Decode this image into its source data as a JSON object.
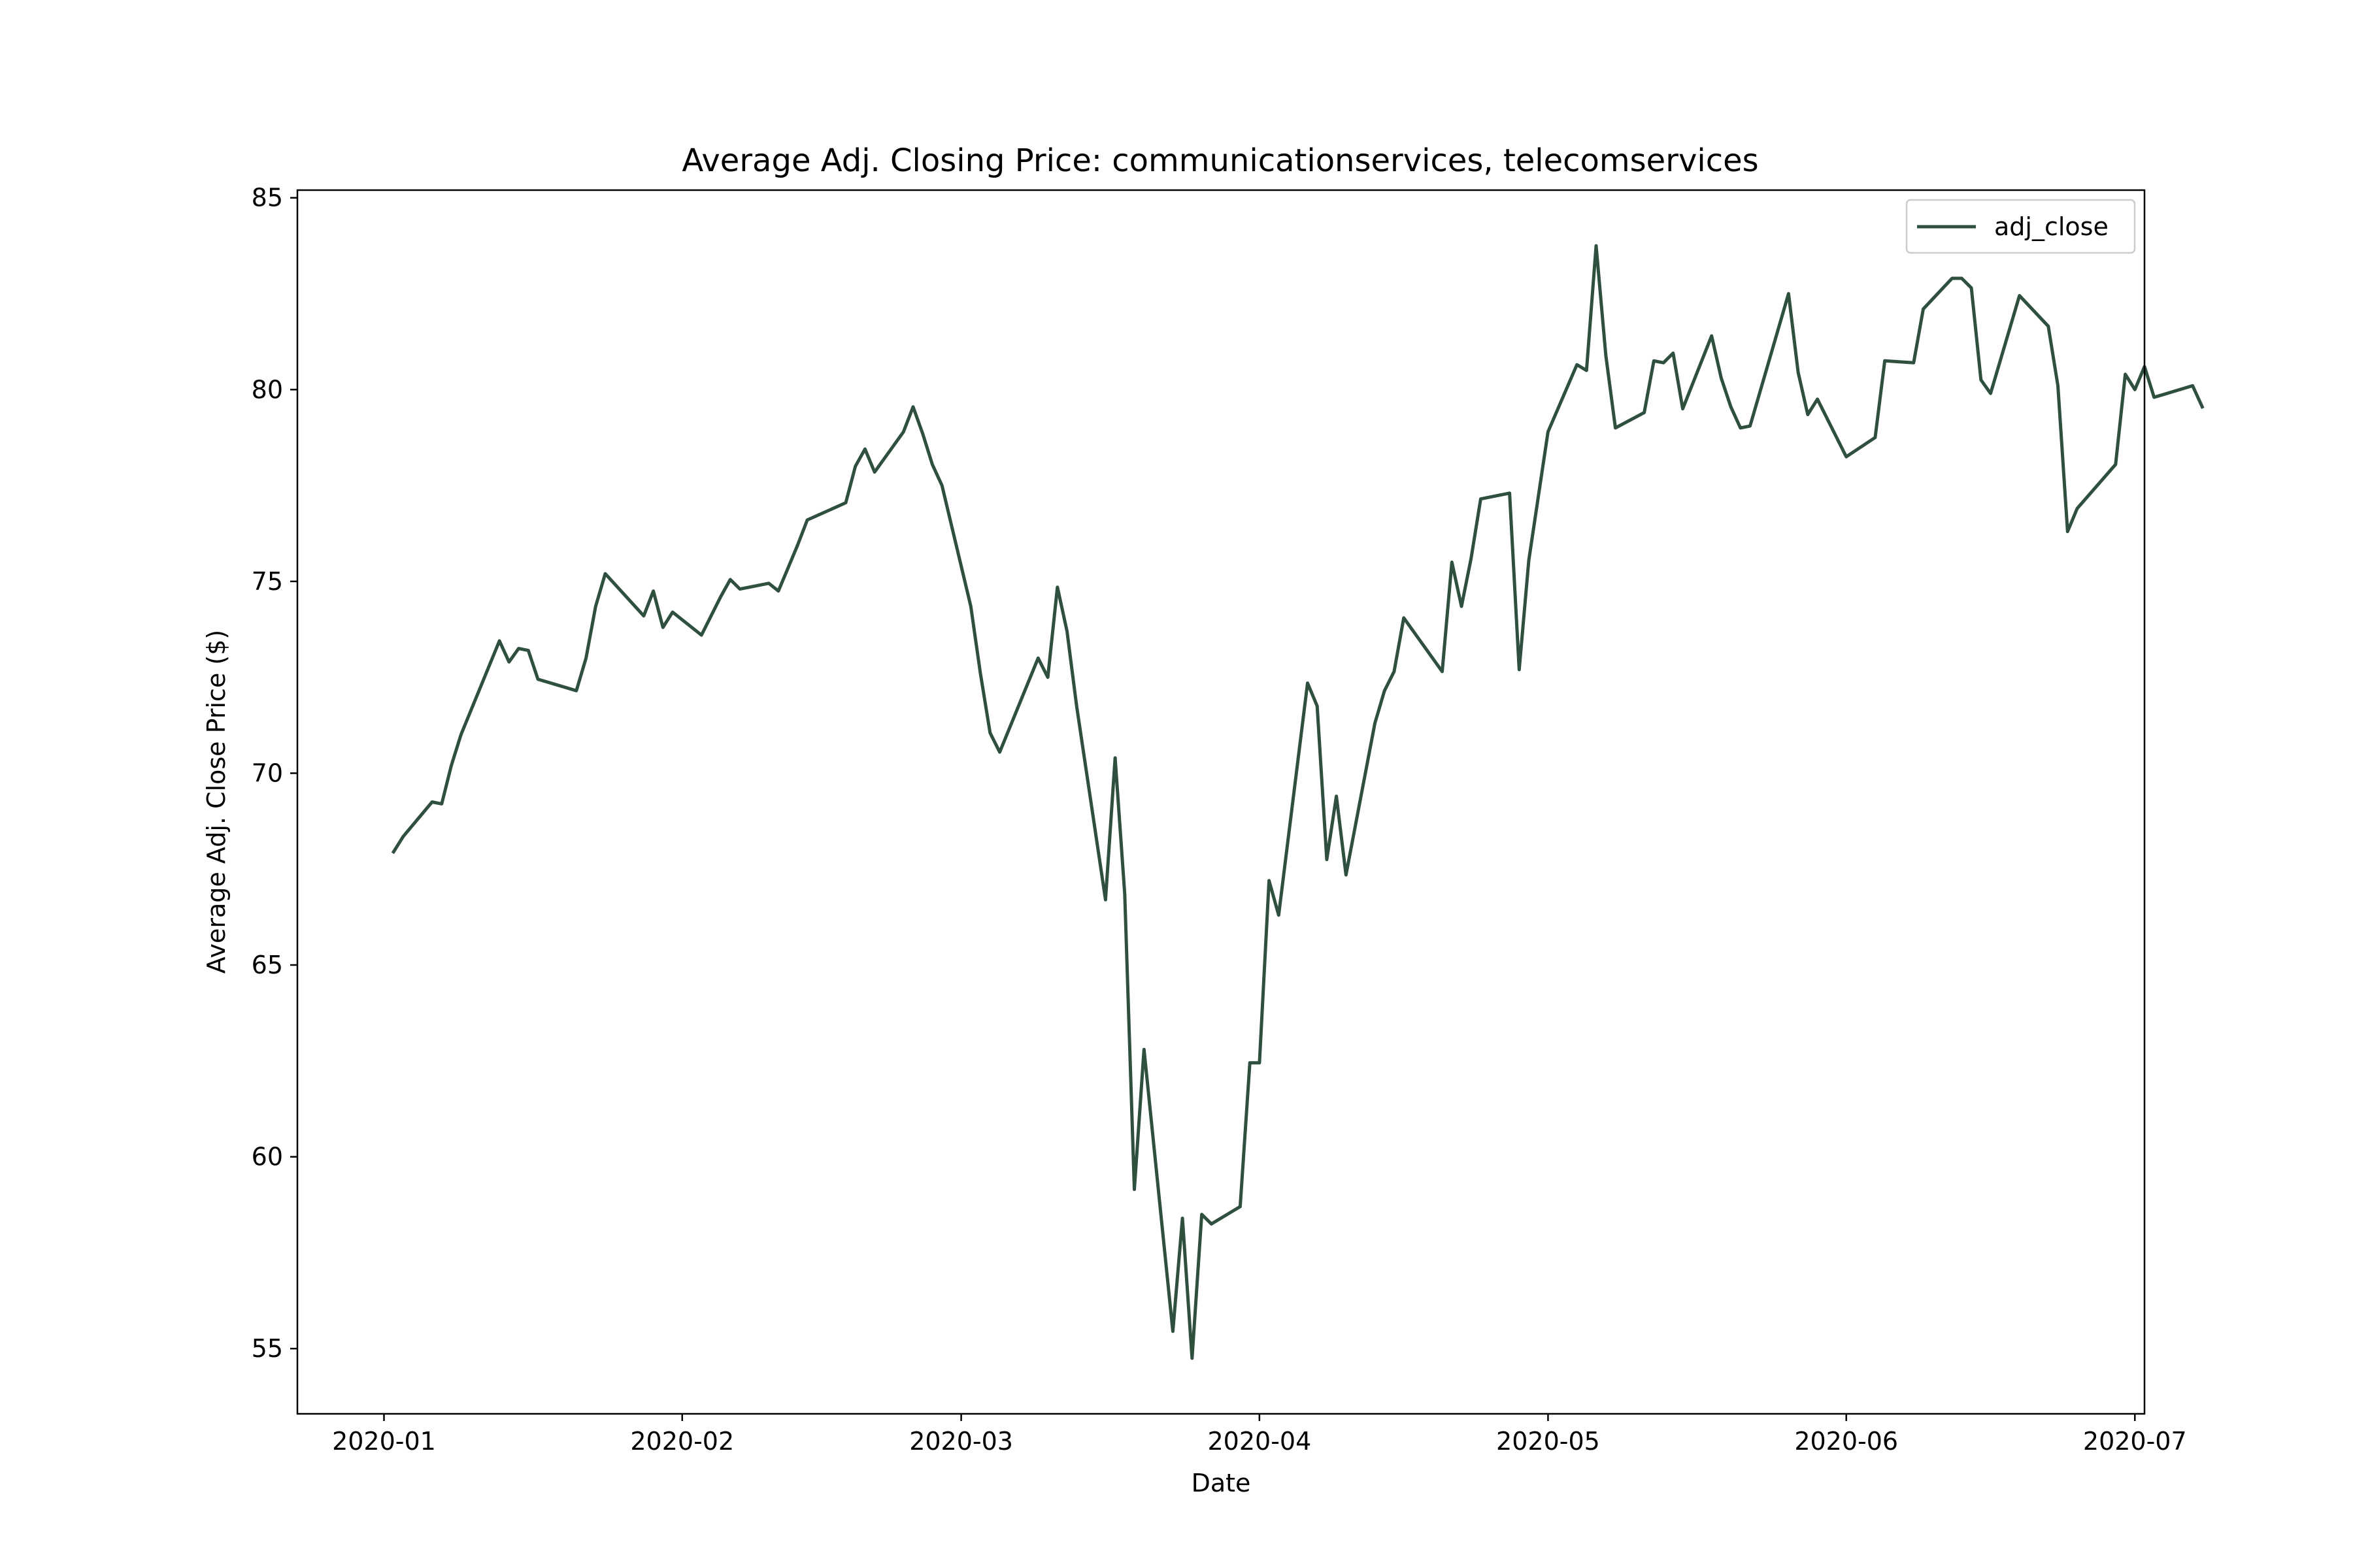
{
  "chart_data": {
    "type": "line",
    "title": "Average Adj. Closing Price: communicationservices, telecomservices",
    "xlabel": "Date",
    "ylabel": "Average Adj. Close Price ($)",
    "xlim": [
      "2019-12-23",
      "2020-07-02"
    ],
    "ylim": [
      53.3,
      85.2
    ],
    "x_ticks": [
      "2020-01-01",
      "2020-02-01",
      "2020-03-01",
      "2020-04-01",
      "2020-05-01",
      "2020-06-01",
      "2020-07-01"
    ],
    "x_tick_labels": [
      "2020-01",
      "2020-02",
      "2020-03",
      "2020-04",
      "2020-05",
      "2020-06",
      "2020-07"
    ],
    "y_ticks": [
      55,
      60,
      65,
      70,
      75,
      80,
      85
    ],
    "y_tick_labels": [
      "55",
      "60",
      "65",
      "70",
      "75",
      "80",
      "85"
    ],
    "grid": false,
    "legend_position": "upper right",
    "series": [
      {
        "name": "adj_close",
        "color": "#2f4f3f",
        "points": [
          [
            "2020-01-02",
            67.95
          ],
          [
            "2020-01-03",
            68.35
          ],
          [
            "2020-01-06",
            69.25
          ],
          [
            "2020-01-07",
            69.2
          ],
          [
            "2020-01-08",
            70.2
          ],
          [
            "2020-01-09",
            71.0
          ],
          [
            "2020-01-13",
            73.45
          ],
          [
            "2020-01-14",
            72.9
          ],
          [
            "2020-01-15",
            73.25
          ],
          [
            "2020-01-16",
            73.2
          ],
          [
            "2020-01-17",
            72.45
          ],
          [
            "2020-01-21",
            72.15
          ],
          [
            "2020-01-22",
            73.0
          ],
          [
            "2020-01-23",
            74.35
          ],
          [
            "2020-01-24",
            75.2
          ],
          [
            "2020-01-28",
            74.1
          ],
          [
            "2020-01-29",
            74.75
          ],
          [
            "2020-01-30",
            73.8
          ],
          [
            "2020-01-31",
            74.2
          ],
          [
            "2020-02-03",
            73.6
          ],
          [
            "2020-02-04",
            74.1
          ],
          [
            "2020-02-05",
            74.6
          ],
          [
            "2020-02-06",
            75.05
          ],
          [
            "2020-02-07",
            74.8
          ],
          [
            "2020-02-10",
            74.95
          ],
          [
            "2020-02-11",
            74.75
          ],
          [
            "2020-02-12",
            75.35
          ],
          [
            "2020-02-13",
            75.95
          ],
          [
            "2020-02-14",
            76.6
          ],
          [
            "2020-02-18",
            77.05
          ],
          [
            "2020-02-19",
            78.0
          ],
          [
            "2020-02-20",
            78.45
          ],
          [
            "2020-02-21",
            77.85
          ],
          [
            "2020-02-24",
            78.9
          ],
          [
            "2020-02-25",
            79.55
          ],
          [
            "2020-02-26",
            78.85
          ],
          [
            "2020-02-27",
            78.05
          ],
          [
            "2020-02-28",
            77.5
          ],
          [
            "2020-03-02",
            74.35
          ],
          [
            "2020-03-03",
            72.6
          ],
          [
            "2020-03-04",
            71.05
          ],
          [
            "2020-03-05",
            70.55
          ],
          [
            "2020-03-09",
            73.0
          ],
          [
            "2020-03-10",
            72.5
          ],
          [
            "2020-03-11",
            74.85
          ],
          [
            "2020-03-12",
            73.7
          ],
          [
            "2020-03-13",
            71.75
          ],
          [
            "2020-03-16",
            66.7
          ],
          [
            "2020-03-17",
            70.4
          ],
          [
            "2020-03-18",
            66.85
          ],
          [
            "2020-03-19",
            59.15
          ],
          [
            "2020-03-20",
            62.8
          ],
          [
            "2020-03-23",
            55.45
          ],
          [
            "2020-03-24",
            58.4
          ],
          [
            "2020-03-25",
            54.75
          ],
          [
            "2020-03-26",
            58.5
          ],
          [
            "2020-03-27",
            58.25
          ],
          [
            "2020-03-30",
            58.7
          ],
          [
            "2020-03-31",
            62.45
          ],
          [
            "2020-04-01",
            62.45
          ],
          [
            "2020-04-02",
            67.2
          ],
          [
            "2020-04-03",
            66.3
          ],
          [
            "2020-04-06",
            72.35
          ],
          [
            "2020-04-07",
            71.75
          ],
          [
            "2020-04-08",
            67.75
          ],
          [
            "2020-04-09",
            69.4
          ],
          [
            "2020-04-10",
            67.35
          ],
          [
            "2020-04-13",
            71.3
          ],
          [
            "2020-04-14",
            72.15
          ],
          [
            "2020-04-15",
            72.65
          ],
          [
            "2020-04-16",
            74.05
          ],
          [
            "2020-04-20",
            72.65
          ],
          [
            "2020-04-21",
            75.5
          ],
          [
            "2020-04-22",
            74.35
          ],
          [
            "2020-04-23",
            75.6
          ],
          [
            "2020-04-24",
            77.15
          ],
          [
            "2020-04-27",
            77.3
          ],
          [
            "2020-04-28",
            72.7
          ],
          [
            "2020-04-29",
            75.55
          ],
          [
            "2020-05-01",
            78.9
          ],
          [
            "2020-05-04",
            80.65
          ],
          [
            "2020-05-05",
            80.5
          ],
          [
            "2020-05-06",
            83.75
          ],
          [
            "2020-05-07",
            80.9
          ],
          [
            "2020-05-08",
            79.0
          ],
          [
            "2020-05-11",
            79.4
          ],
          [
            "2020-05-12",
            80.75
          ],
          [
            "2020-05-13",
            80.7
          ],
          [
            "2020-05-14",
            80.95
          ],
          [
            "2020-05-15",
            79.5
          ],
          [
            "2020-05-18",
            81.4
          ],
          [
            "2020-05-19",
            80.3
          ],
          [
            "2020-05-20",
            79.55
          ],
          [
            "2020-05-21",
            79.0
          ],
          [
            "2020-05-22",
            79.05
          ],
          [
            "2020-05-26",
            82.5
          ],
          [
            "2020-05-27",
            80.45
          ],
          [
            "2020-05-28",
            79.35
          ],
          [
            "2020-05-29",
            79.75
          ],
          [
            "2020-06-01",
            78.25
          ],
          [
            "2020-06-04",
            78.75
          ],
          [
            "2020-06-05",
            80.75
          ],
          [
            "2020-06-08",
            80.7
          ],
          [
            "2020-06-09",
            82.1
          ],
          [
            "2020-06-12",
            82.9
          ],
          [
            "2020-06-13",
            82.9
          ],
          [
            "2020-06-14",
            82.65
          ],
          [
            "2020-06-15",
            80.25
          ],
          [
            "2020-06-16",
            79.9
          ],
          [
            "2020-06-19",
            82.45
          ],
          [
            "2020-06-22",
            81.65
          ],
          [
            "2020-06-23",
            80.1
          ],
          [
            "2020-06-24",
            76.3
          ],
          [
            "2020-06-25",
            76.9
          ],
          [
            "2020-06-29",
            78.05
          ],
          [
            "2020-06-30",
            80.4
          ],
          [
            "2020-07-01",
            80.0
          ],
          [
            "2020-07-02",
            80.6
          ],
          [
            "2020-07-03",
            79.8
          ],
          [
            "2020-07-07",
            80.1
          ],
          [
            "2020-07-08",
            79.55
          ]
        ]
      }
    ]
  }
}
